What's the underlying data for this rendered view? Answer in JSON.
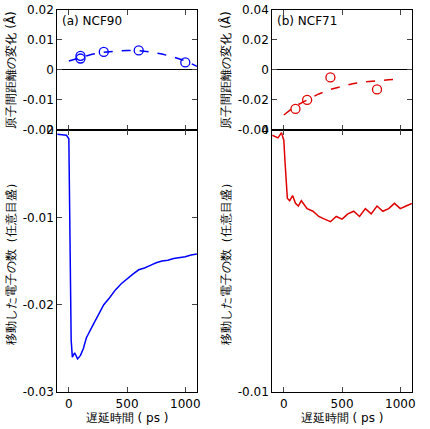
{
  "chart_data": [
    {
      "type": "scatter",
      "title": "(a) NCF90",
      "y_label": "原子間距離の変化 (Å)",
      "tick_labels": "y",
      "xlim": [
        -100,
        1100
      ],
      "xticks": [
        0,
        500,
        1000
      ],
      "ylim": [
        -0.02,
        0.02
      ],
      "yticks": [
        -0.02,
        -0.01,
        0,
        0.01,
        0.02
      ],
      "series": [
        {
          "type": "scatter",
          "marker": "open circle",
          "color": "#0000ff",
          "x": [
            100,
            100,
            300,
            600,
            1000
          ],
          "values": [
            0.0038,
            0.0047,
            0.006,
            0.0065,
            0.0025
          ]
        },
        {
          "type": "line",
          "line_style": "dashed",
          "color": "#0000ff",
          "x": [
            0,
            100,
            200,
            300,
            400,
            500,
            600,
            700,
            800,
            900,
            1000,
            1100
          ],
          "values": [
            0.003,
            0.0042,
            0.0052,
            0.0059,
            0.0063,
            0.0065,
            0.0064,
            0.006,
            0.0053,
            0.0043,
            0.003,
            0.0012
          ]
        }
      ]
    },
    {
      "type": "line",
      "x_label": "遅延時間 ( ps )",
      "y_label": "移動した電子の数（任意目盛）",
      "xlim": [
        -100,
        1100
      ],
      "xticks": [
        0,
        500,
        1000
      ],
      "ylim": [
        -0.03,
        0
      ],
      "yticks": [
        -0.03,
        -0.02,
        -0.01,
        0
      ],
      "series": [
        {
          "type": "line",
          "color": "#0000ff",
          "x": [
            -100,
            -50,
            -20,
            0,
            10,
            20,
            30,
            50,
            75,
            100,
            125,
            150,
            200,
            250,
            300,
            350,
            400,
            450,
            500,
            550,
            600,
            650,
            700,
            750,
            800,
            850,
            900,
            950,
            1000,
            1050,
            1100
          ],
          "values": [
            -0.0005,
            -0.0006,
            -0.0006,
            -0.001,
            -0.015,
            -0.024,
            -0.026,
            -0.0255,
            -0.0262,
            -0.0258,
            -0.025,
            -0.0238,
            -0.0225,
            -0.0212,
            -0.02,
            -0.0192,
            -0.0183,
            -0.0176,
            -0.017,
            -0.0165,
            -0.016,
            -0.0158,
            -0.0155,
            -0.0152,
            -0.015,
            -0.0149,
            -0.0147,
            -0.0146,
            -0.0145,
            -0.0143,
            -0.0142
          ]
        }
      ]
    },
    {
      "type": "scatter",
      "title": "(b) NCF71",
      "y_label": "原子間距離の変化 (Å)",
      "tick_labels": "y",
      "xlim": [
        -100,
        1100
      ],
      "xticks": [
        0,
        500,
        1000
      ],
      "ylim": [
        -0.04,
        0.04
      ],
      "yticks": [
        -0.04,
        -0.02,
        0,
        0.02,
        0.04
      ],
      "series": [
        {
          "type": "scatter",
          "marker": "open circle",
          "color": "#e00000",
          "x": [
            100,
            200,
            400,
            800
          ],
          "values": [
            -0.026,
            -0.02,
            -0.005,
            -0.013
          ]
        },
        {
          "type": "line",
          "line_style": "dashed",
          "color": "#e00000",
          "x": [
            0,
            100,
            200,
            300,
            400,
            500,
            600,
            700,
            800,
            900,
            1000
          ],
          "values": [
            -0.03,
            -0.024,
            -0.02,
            -0.016,
            -0.013,
            -0.011,
            -0.009,
            -0.008,
            -0.007,
            -0.0065,
            -0.006
          ]
        }
      ]
    },
    {
      "type": "line",
      "x_label": "遅延時間 ( ps )",
      "y_label": "移動した電子の数（任意目盛）",
      "xlim": [
        -100,
        1100
      ],
      "xticks": [
        0,
        500,
        1000
      ],
      "ylim": [
        -0.01,
        0
      ],
      "yticks": [
        -0.01,
        0
      ],
      "series": [
        {
          "type": "line",
          "color": "#e00000",
          "x": [
            -100,
            -50,
            -20,
            0,
            10,
            20,
            30,
            50,
            75,
            100,
            125,
            150,
            200,
            250,
            300,
            350,
            400,
            450,
            500,
            550,
            600,
            650,
            700,
            750,
            800,
            850,
            900,
            950,
            1000,
            1050,
            1100
          ],
          "values": [
            -0.0002,
            -0.0003,
            -0.0001,
            -0.0004,
            -0.0012,
            -0.0022,
            -0.0026,
            -0.0027,
            -0.0025,
            -0.0028,
            -0.0029,
            -0.0027,
            -0.003,
            -0.0031,
            -0.0033,
            -0.0034,
            -0.0035,
            -0.0033,
            -0.0034,
            -0.0032,
            -0.0031,
            -0.0033,
            -0.003,
            -0.0032,
            -0.0029,
            -0.0031,
            -0.003,
            -0.0028,
            -0.003,
            -0.0029,
            -0.0028
          ]
        }
      ]
    }
  ]
}
